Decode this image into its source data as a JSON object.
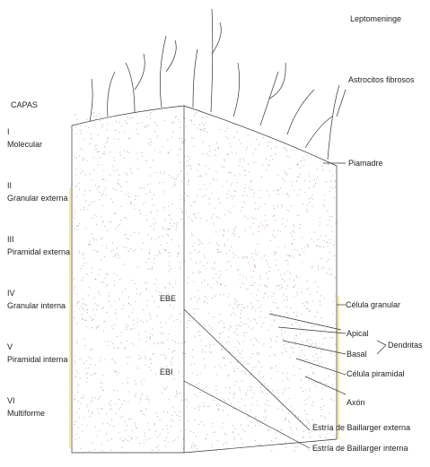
{
  "title": "Leptomeninge",
  "layers_heading": "CAPAS",
  "layers": [
    {
      "numeral": "I",
      "name": "Molecular"
    },
    {
      "numeral": "II",
      "name": "Granular externa"
    },
    {
      "numeral": "III",
      "name": "Piramidal externa"
    },
    {
      "numeral": "IV",
      "name": "Granular interna"
    },
    {
      "numeral": "V",
      "name": "Piramidal interna"
    },
    {
      "numeral": "VI",
      "name": "Multiforme"
    }
  ],
  "inner_labels": [
    "EBE",
    "EBI"
  ],
  "right_labels": {
    "top": "Astrocitos fibrosos",
    "pia": "Piamadre",
    "granular": "Célula granular",
    "apical": "Apical",
    "basal": "Basal",
    "dendrites": "Dendritas",
    "pyramidal": "Célula piramidal",
    "axon": "Axón",
    "stria_ext": "Estría de Baillarger externa",
    "stria_int": "Estría de Baillarger interna"
  }
}
